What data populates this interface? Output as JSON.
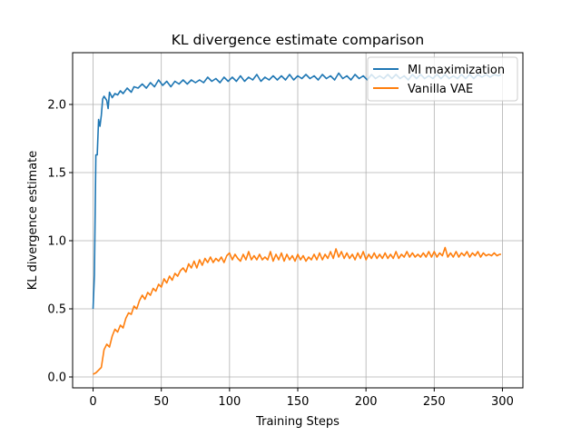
{
  "chart_data": {
    "type": "line",
    "title": "KL divergence estimate comparison",
    "xlabel": "Training Steps",
    "ylabel": "KL divergence estimate",
    "xlim": [
      -15,
      315
    ],
    "ylim": [
      -0.08,
      2.38
    ],
    "xticks": [
      0,
      50,
      100,
      150,
      200,
      250,
      300
    ],
    "yticks": [
      0.0,
      0.5,
      1.0,
      1.5,
      2.0
    ],
    "xtick_labels": [
      "0",
      "50",
      "100",
      "150",
      "200",
      "250",
      "300"
    ],
    "ytick_labels": [
      "0.0",
      "0.5",
      "1.0",
      "1.5",
      "2.0"
    ],
    "grid": true,
    "legend_position": "top-right",
    "series": [
      {
        "name": "MI maximization",
        "color": "#1f77b4",
        "points": [
          [
            0,
            0.5
          ],
          [
            1,
            0.75
          ],
          [
            2,
            1.63
          ],
          [
            3,
            1.63
          ],
          [
            4,
            1.89
          ],
          [
            5,
            1.84
          ],
          [
            6,
            1.92
          ],
          [
            7,
            2.04
          ],
          [
            8,
            2.06
          ],
          [
            10,
            2.03
          ],
          [
            11,
            1.97
          ],
          [
            12,
            2.09
          ],
          [
            14,
            2.05
          ],
          [
            16,
            2.08
          ],
          [
            18,
            2.07
          ],
          [
            20,
            2.1
          ],
          [
            22,
            2.08
          ],
          [
            25,
            2.12
          ],
          [
            28,
            2.09
          ],
          [
            30,
            2.13
          ],
          [
            33,
            2.12
          ],
          [
            36,
            2.15
          ],
          [
            39,
            2.12
          ],
          [
            42,
            2.16
          ],
          [
            45,
            2.13
          ],
          [
            48,
            2.18
          ],
          [
            51,
            2.14
          ],
          [
            54,
            2.17
          ],
          [
            57,
            2.13
          ],
          [
            60,
            2.17
          ],
          [
            63,
            2.15
          ],
          [
            66,
            2.18
          ],
          [
            69,
            2.15
          ],
          [
            72,
            2.18
          ],
          [
            75,
            2.16
          ],
          [
            78,
            2.18
          ],
          [
            81,
            2.16
          ],
          [
            84,
            2.2
          ],
          [
            87,
            2.17
          ],
          [
            90,
            2.19
          ],
          [
            93,
            2.16
          ],
          [
            96,
            2.2
          ],
          [
            99,
            2.17
          ],
          [
            102,
            2.2
          ],
          [
            105,
            2.17
          ],
          [
            108,
            2.21
          ],
          [
            111,
            2.17
          ],
          [
            114,
            2.2
          ],
          [
            117,
            2.18
          ],
          [
            120,
            2.22
          ],
          [
            123,
            2.17
          ],
          [
            126,
            2.2
          ],
          [
            129,
            2.18
          ],
          [
            132,
            2.21
          ],
          [
            135,
            2.18
          ],
          [
            138,
            2.21
          ],
          [
            141,
            2.18
          ],
          [
            144,
            2.22
          ],
          [
            147,
            2.18
          ],
          [
            150,
            2.21
          ],
          [
            153,
            2.19
          ],
          [
            156,
            2.22
          ],
          [
            159,
            2.19
          ],
          [
            162,
            2.21
          ],
          [
            165,
            2.18
          ],
          [
            168,
            2.22
          ],
          [
            171,
            2.19
          ],
          [
            174,
            2.21
          ],
          [
            177,
            2.18
          ],
          [
            180,
            2.23
          ],
          [
            183,
            2.19
          ],
          [
            186,
            2.21
          ],
          [
            189,
            2.18
          ],
          [
            192,
            2.22
          ],
          [
            195,
            2.19
          ],
          [
            198,
            2.21
          ],
          [
            201,
            2.18
          ],
          [
            204,
            2.22
          ],
          [
            207,
            2.19
          ],
          [
            210,
            2.21
          ],
          [
            213,
            2.19
          ],
          [
            216,
            2.22
          ],
          [
            219,
            2.19
          ],
          [
            222,
            2.22
          ],
          [
            225,
            2.19
          ],
          [
            228,
            2.21
          ],
          [
            231,
            2.18
          ],
          [
            234,
            2.22
          ],
          [
            237,
            2.19
          ],
          [
            240,
            2.22
          ],
          [
            243,
            2.19
          ],
          [
            246,
            2.21
          ],
          [
            249,
            2.19
          ],
          [
            252,
            2.22
          ],
          [
            255,
            2.19
          ],
          [
            258,
            2.22
          ],
          [
            261,
            2.19
          ],
          [
            264,
            2.21
          ],
          [
            267,
            2.19
          ],
          [
            270,
            2.22
          ],
          [
            273,
            2.19
          ],
          [
            276,
            2.22
          ],
          [
            279,
            2.19
          ],
          [
            282,
            2.22
          ],
          [
            285,
            2.2
          ],
          [
            288,
            2.22
          ],
          [
            291,
            2.2
          ],
          [
            294,
            2.22
          ],
          [
            297,
            2.21
          ],
          [
            299,
            2.22
          ]
        ]
      },
      {
        "name": "Vanilla VAE",
        "color": "#ff7f0e",
        "points": [
          [
            0,
            0.02
          ],
          [
            2,
            0.03
          ],
          [
            4,
            0.05
          ],
          [
            6,
            0.07
          ],
          [
            8,
            0.2
          ],
          [
            10,
            0.24
          ],
          [
            12,
            0.22
          ],
          [
            14,
            0.3
          ],
          [
            16,
            0.35
          ],
          [
            18,
            0.33
          ],
          [
            20,
            0.38
          ],
          [
            22,
            0.36
          ],
          [
            24,
            0.43
          ],
          [
            26,
            0.47
          ],
          [
            28,
            0.46
          ],
          [
            30,
            0.52
          ],
          [
            32,
            0.5
          ],
          [
            34,
            0.56
          ],
          [
            36,
            0.6
          ],
          [
            38,
            0.57
          ],
          [
            40,
            0.62
          ],
          [
            42,
            0.6
          ],
          [
            44,
            0.65
          ],
          [
            46,
            0.63
          ],
          [
            48,
            0.68
          ],
          [
            50,
            0.66
          ],
          [
            52,
            0.72
          ],
          [
            54,
            0.69
          ],
          [
            56,
            0.74
          ],
          [
            58,
            0.71
          ],
          [
            60,
            0.76
          ],
          [
            62,
            0.74
          ],
          [
            64,
            0.78
          ],
          [
            66,
            0.8
          ],
          [
            68,
            0.77
          ],
          [
            70,
            0.83
          ],
          [
            72,
            0.8
          ],
          [
            74,
            0.85
          ],
          [
            76,
            0.8
          ],
          [
            78,
            0.86
          ],
          [
            80,
            0.82
          ],
          [
            82,
            0.87
          ],
          [
            84,
            0.84
          ],
          [
            86,
            0.88
          ],
          [
            88,
            0.84
          ],
          [
            90,
            0.87
          ],
          [
            92,
            0.85
          ],
          [
            94,
            0.88
          ],
          [
            96,
            0.84
          ],
          [
            98,
            0.89
          ],
          [
            100,
            0.91
          ],
          [
            102,
            0.86
          ],
          [
            104,
            0.9
          ],
          [
            106,
            0.87
          ],
          [
            108,
            0.85
          ],
          [
            110,
            0.9
          ],
          [
            112,
            0.86
          ],
          [
            114,
            0.92
          ],
          [
            116,
            0.86
          ],
          [
            118,
            0.89
          ],
          [
            120,
            0.86
          ],
          [
            122,
            0.9
          ],
          [
            124,
            0.86
          ],
          [
            126,
            0.88
          ],
          [
            128,
            0.86
          ],
          [
            130,
            0.92
          ],
          [
            132,
            0.85
          ],
          [
            134,
            0.9
          ],
          [
            136,
            0.86
          ],
          [
            138,
            0.91
          ],
          [
            140,
            0.85
          ],
          [
            142,
            0.9
          ],
          [
            144,
            0.86
          ],
          [
            146,
            0.89
          ],
          [
            148,
            0.85
          ],
          [
            150,
            0.9
          ],
          [
            152,
            0.86
          ],
          [
            154,
            0.89
          ],
          [
            156,
            0.85
          ],
          [
            158,
            0.88
          ],
          [
            160,
            0.86
          ],
          [
            162,
            0.9
          ],
          [
            164,
            0.86
          ],
          [
            166,
            0.91
          ],
          [
            168,
            0.86
          ],
          [
            170,
            0.9
          ],
          [
            172,
            0.87
          ],
          [
            174,
            0.92
          ],
          [
            176,
            0.87
          ],
          [
            178,
            0.94
          ],
          [
            180,
            0.88
          ],
          [
            182,
            0.92
          ],
          [
            184,
            0.87
          ],
          [
            186,
            0.91
          ],
          [
            188,
            0.87
          ],
          [
            190,
            0.9
          ],
          [
            192,
            0.86
          ],
          [
            194,
            0.91
          ],
          [
            196,
            0.87
          ],
          [
            198,
            0.92
          ],
          [
            200,
            0.86
          ],
          [
            202,
            0.9
          ],
          [
            204,
            0.87
          ],
          [
            206,
            0.91
          ],
          [
            208,
            0.87
          ],
          [
            210,
            0.9
          ],
          [
            212,
            0.87
          ],
          [
            214,
            0.91
          ],
          [
            216,
            0.87
          ],
          [
            218,
            0.9
          ],
          [
            220,
            0.87
          ],
          [
            222,
            0.92
          ],
          [
            224,
            0.87
          ],
          [
            226,
            0.9
          ],
          [
            228,
            0.88
          ],
          [
            230,
            0.92
          ],
          [
            232,
            0.88
          ],
          [
            234,
            0.91
          ],
          [
            236,
            0.88
          ],
          [
            238,
            0.9
          ],
          [
            240,
            0.88
          ],
          [
            242,
            0.91
          ],
          [
            244,
            0.88
          ],
          [
            246,
            0.92
          ],
          [
            248,
            0.88
          ],
          [
            250,
            0.92
          ],
          [
            252,
            0.88
          ],
          [
            254,
            0.91
          ],
          [
            256,
            0.89
          ],
          [
            258,
            0.95
          ],
          [
            260,
            0.88
          ],
          [
            262,
            0.91
          ],
          [
            264,
            0.88
          ],
          [
            266,
            0.92
          ],
          [
            268,
            0.88
          ],
          [
            270,
            0.91
          ],
          [
            272,
            0.89
          ],
          [
            274,
            0.92
          ],
          [
            276,
            0.88
          ],
          [
            278,
            0.91
          ],
          [
            280,
            0.89
          ],
          [
            282,
            0.92
          ],
          [
            284,
            0.88
          ],
          [
            286,
            0.91
          ],
          [
            288,
            0.89
          ],
          [
            290,
            0.9
          ],
          [
            292,
            0.89
          ],
          [
            294,
            0.91
          ],
          [
            296,
            0.89
          ],
          [
            298,
            0.9
          ],
          [
            299,
            0.9
          ]
        ]
      }
    ]
  }
}
